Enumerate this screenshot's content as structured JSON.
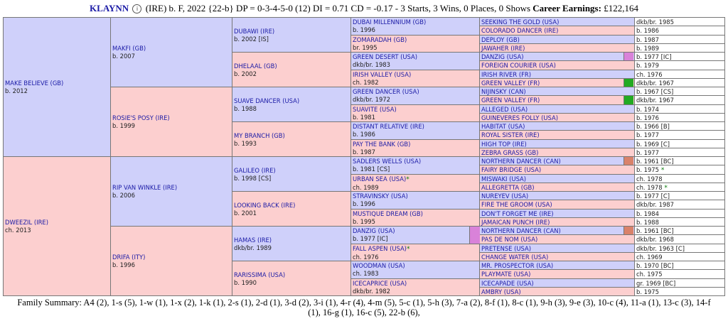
{
  "header": {
    "name": "KLAYNN",
    "info_icon": "info-circle-icon",
    "details": "(IRE) b. F, 2022 {22-b} DP = 0-3-4-5-0 (12) DI = 0.71   CD = -0.17 - 3 Starts, 3 Wins, 0 Places, 0 Shows",
    "earnings_label": "Career Earnings:",
    "earnings_value": "£122,164"
  },
  "pedigree": {
    "g1": [
      {
        "name": "MAKE BELIEVE (GB)",
        "info": "b. 2012"
      },
      {
        "name": "DWEEZIL (IRE)",
        "info": "ch. 2013"
      }
    ],
    "g2": [
      {
        "name": "MAKFI (GB)",
        "info": "b. 2007"
      },
      {
        "name": "ROSIE'S POSY (IRE)",
        "info": "b. 1999"
      },
      {
        "name": "RIP VAN WINKLE (IRE)",
        "info": "b. 2006"
      },
      {
        "name": "DRIFA (ITY)",
        "info": "b. 1996"
      }
    ],
    "g3": [
      {
        "name": "DUBAWI (IRE)",
        "info": "b. 2002 [IS]"
      },
      {
        "name": "DHELAAL (GB)",
        "info": "b. 2002"
      },
      {
        "name": "SUAVE DANCER (USA)",
        "info": "b. 1988"
      },
      {
        "name": "MY BRANCH (GB)",
        "info": "b. 1993"
      },
      {
        "name": "GALILEO (IRE)",
        "info": "b. 1998 [CS]"
      },
      {
        "name": "LOOKING BACK (IRE)",
        "info": "b. 2001"
      },
      {
        "name": "HAMAS (IRE)",
        "info": "dkb/br. 1989"
      },
      {
        "name": "RARISSIMA (USA)",
        "info": "b. 1990"
      }
    ],
    "g4": [
      {
        "name": "DUBAI MILLENNIUM (GB)",
        "info": "b. 1996"
      },
      {
        "name": "ZOMARADAH (GB)",
        "info": "br. 1995"
      },
      {
        "name": "GREEN DESERT (USA)",
        "info": "dkb/br. 1983"
      },
      {
        "name": "IRISH VALLEY (USA)",
        "info": "ch. 1982"
      },
      {
        "name": "GREEN DANCER (USA)",
        "info": "dkb/br. 1972"
      },
      {
        "name": "SUAVITE (USA)",
        "info": "b. 1981"
      },
      {
        "name": "DISTANT RELATIVE (IRE)",
        "info": "b. 1986"
      },
      {
        "name": "PAY THE BANK (GB)",
        "info": "b. 1987"
      },
      {
        "name": "SADLERS WELLS (USA)",
        "info": "b. 1981 [CS]"
      },
      {
        "name": "URBAN SEA (USA)",
        "info": "ch. 1989",
        "mark": "*"
      },
      {
        "name": "STRAVINSKY (USA)",
        "info": "b. 1996"
      },
      {
        "name": "MUSTIQUE DREAM (GB)",
        "info": "b. 1995"
      },
      {
        "name": "DANZIG (USA)",
        "info": "b. 1977 [IC]"
      },
      {
        "name": "FALL ASPEN (USA)",
        "info": "ch. 1976",
        "mark": "*"
      },
      {
        "name": "WOODMAN (USA)",
        "info": "ch. 1983"
      },
      {
        "name": "ICECAPRICE (USA)",
        "info": "dkb/br. 1982"
      }
    ],
    "g5": [
      {
        "name": "SEEKING THE GOLD (USA)",
        "info": "dkb/br. 1985"
      },
      {
        "name": "COLORADO DANCER (IRE)",
        "info": "b. 1986"
      },
      {
        "name": "DEPLOY (GB)",
        "info": "b. 1987"
      },
      {
        "name": "JAWAHER (IRE)",
        "info": "b. 1989"
      },
      {
        "name": "DANZIG (USA)",
        "info": "b. 1977 [IC]"
      },
      {
        "name": "FOREIGN COURIER (USA)",
        "info": "b. 1979"
      },
      {
        "name": "IRISH RIVER (FR)",
        "info": "ch. 1976"
      },
      {
        "name": "GREEN VALLEY (FR)",
        "info": "dkb/br. 1967"
      },
      {
        "name": "NIJINSKY (CAN)",
        "info": "b. 1967 [CS]"
      },
      {
        "name": "GREEN VALLEY (FR)",
        "info": "dkb/br. 1967"
      },
      {
        "name": "ALLEGED (USA)",
        "info": "b. 1974"
      },
      {
        "name": "GUINEVERES FOLLY (USA)",
        "info": "b. 1976"
      },
      {
        "name": "HABITAT (USA)",
        "info": "b. 1966 [B]"
      },
      {
        "name": "ROYAL SISTER (IRE)",
        "info": "b. 1977"
      },
      {
        "name": "HIGH TOP (IRE)",
        "info": "b. 1969 [C]"
      },
      {
        "name": "ZEBRA GRASS (GB)",
        "info": "b. 1977"
      },
      {
        "name": "NORTHERN DANCER (CAN)",
        "info": "b. 1961 [BC]"
      },
      {
        "name": "FAIRY BRIDGE (USA)",
        "info": "b. 1975",
        "mark": "*"
      },
      {
        "name": "MISWAKI (USA)",
        "info": "ch. 1978"
      },
      {
        "name": "ALLEGRETTA (GB)",
        "info": "ch. 1978",
        "mark": "*"
      },
      {
        "name": "NUREYEV (USA)",
        "info": "b. 1977 [C]"
      },
      {
        "name": "FIRE THE GROOM (USA)",
        "info": "dkb/br. 1987"
      },
      {
        "name": "DON'T FORGET ME (IRE)",
        "info": "b. 1984"
      },
      {
        "name": "JAMAICAN PUNCH (IRE)",
        "info": "b. 1988"
      },
      {
        "name": "NORTHERN DANCER (CAN)",
        "info": "b. 1961 [BC]"
      },
      {
        "name": "PAS DE NOM (USA)",
        "info": "dkb/br. 1968"
      },
      {
        "name": "PRETENSE (USA)",
        "info": "dkb/br. 1963 [C]"
      },
      {
        "name": "CHANGE WATER (USA)",
        "info": "ch. 1969"
      },
      {
        "name": "MR. PROSPECTOR (USA)",
        "info": "b. 1970 [BC]"
      },
      {
        "name": "PLAYMATE (USA)",
        "info": "ch. 1975"
      },
      {
        "name": "ICECAPADE (USA)",
        "info": "gr. 1969 [BC]"
      },
      {
        "name": "AMBRY (USA)",
        "info": "b. 1975"
      }
    ],
    "colors": {
      "male_bg": "#cfd0fa",
      "female_bg": "#fccfcf",
      "name_text": "#1a1aa6",
      "mark_green": "#0a7a0a",
      "dup_danzig": "#d982d9",
      "dup_green_valley": "#22aa22",
      "dup_northern_dancer": "#d9826a"
    }
  },
  "family_summary": "Family Summary: A4 (2), 1-s (5), 1-w (1), 1-x (2), 1-k (1), 2-s (1), 2-d (1), 3-d (2), 3-i (1), 4-r (4), 4-m (5), 5-c (1), 5-h (3), 7-a (2), 8-f (1), 8-c (1), 9-h (3), 9-e (3), 10-c (4), 11-a (1), 13-c (3), 14-f (1), 16-g (1), 16-c (5), 22-b (6),"
}
